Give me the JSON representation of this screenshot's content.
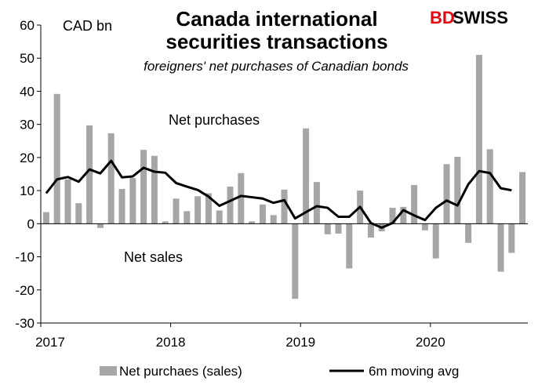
{
  "logo": {
    "part1": "BD",
    "part2": "SWISS"
  },
  "chart_data": {
    "type": "bar",
    "title_lines": [
      "Canada international",
      "securities transactions"
    ],
    "subtitle": "foreigners' net purchases of Canadian bonds",
    "ylabel": "CAD bn",
    "ylim": [
      -30,
      60
    ],
    "yticks": [
      -30,
      -20,
      -10,
      0,
      10,
      20,
      30,
      40,
      50,
      60
    ],
    "x_ticks": [
      "2017",
      "2018",
      "2019",
      "2020"
    ],
    "annotations": [
      "Net purchases",
      "Net sales"
    ],
    "legend_position": "bottom",
    "colors": {
      "bars": "#a6a6a6",
      "line": "#000000"
    },
    "series": [
      {
        "name": "Net purchaes (sales)",
        "type": "bar",
        "values": [
          3.5,
          39.2,
          13.4,
          6.2,
          29.7,
          -1.3,
          27.3,
          10.5,
          13.8,
          22.3,
          20.5,
          0.7,
          7.6,
          3.8,
          8.3,
          9.2,
          4.0,
          11.2,
          15.3,
          0.7,
          5.8,
          2.6,
          10.3,
          -22.7,
          28.8,
          12.6,
          -3.2,
          -3.0,
          -13.5,
          10.0,
          -4.2,
          -2.3,
          4.8,
          5.1,
          11.7,
          -2.0,
          -10.5,
          18.0,
          20.2,
          -5.8,
          51.0,
          22.5,
          -14.5,
          -8.8,
          15.6
        ]
      },
      {
        "name": "6m moving avg",
        "type": "line",
        "values": [
          9.2,
          13.4,
          14.1,
          12.7,
          16.4,
          15.2,
          19.0,
          14.0,
          14.3,
          16.9,
          15.7,
          15.4,
          12.3,
          11.2,
          10.2,
          8.2,
          5.4,
          6.9,
          8.4,
          8.0,
          7.6,
          6.3,
          7.1,
          1.6,
          3.5,
          5.3,
          4.8,
          2.1,
          2.1,
          5.1,
          0.2,
          -1.2,
          0.2,
          4.1,
          2.5,
          1.1,
          4.8,
          7.0,
          5.5,
          11.9,
          15.9,
          15.3,
          10.7,
          10.1
        ]
      }
    ]
  }
}
